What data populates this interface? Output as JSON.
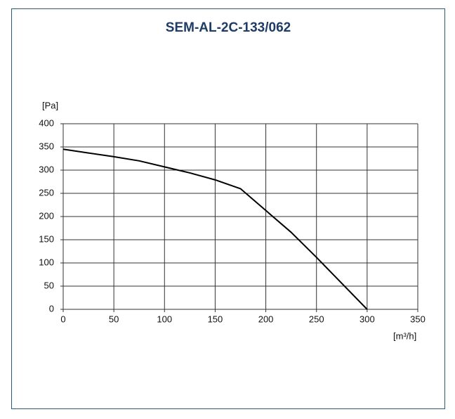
{
  "chart_data": {
    "type": "line",
    "title": "SEM-AL-2C-133/062",
    "x_label": "[m³/h]",
    "y_label": "[Pa]",
    "x": [
      0,
      25,
      50,
      75,
      100,
      125,
      150,
      175,
      200,
      225,
      250,
      275,
      300
    ],
    "series": [
      {
        "name": "SEM-AL-2C-133/062",
        "color": "#000000",
        "values": [
          345,
          337,
          329,
          320,
          307,
          294,
          279,
          260,
          213,
          166,
          112,
          56,
          0
        ]
      }
    ],
    "xlim": [
      0,
      350
    ],
    "xticks": [
      0,
      50,
      100,
      150,
      200,
      250,
      300,
      350
    ],
    "ylim": [
      0,
      400
    ],
    "yticks": [
      0,
      50,
      100,
      150,
      200,
      250,
      300,
      350,
      400
    ],
    "grid": true
  }
}
